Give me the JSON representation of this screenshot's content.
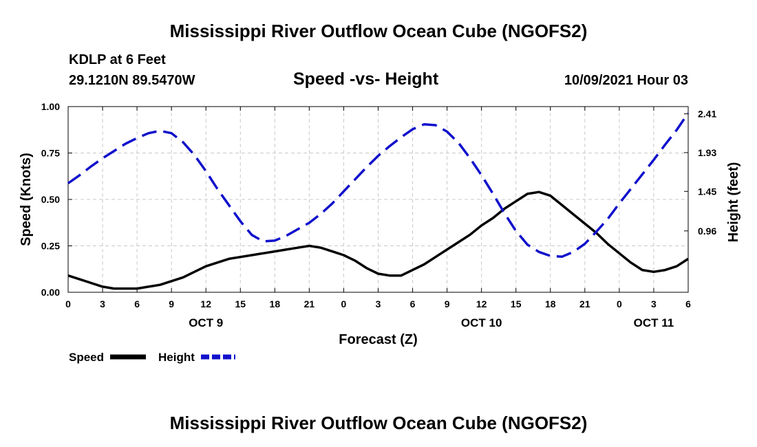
{
  "page": {
    "title_top": "Mississippi River Outflow Ocean Cube (NGOFS2)",
    "title_bottom": "Mississippi River Outflow Ocean Cube (NGOFS2)",
    "station": "KDLP at 6 Feet",
    "coords": "29.1210N  89.5470W",
    "chart_title": "Speed -vs- Height",
    "datetime": "10/09/2021 Hour 03"
  },
  "chart_data": {
    "type": "line",
    "title": "Speed -vs- Height",
    "xlabel": "Forecast (Z)",
    "ylabel": "Speed (Knots)",
    "y2label": "Height (feet)",
    "xlim": [
      0,
      54
    ],
    "ylim": [
      0,
      1.0
    ],
    "y2lim": [
      0.2,
      2.5
    ],
    "grid": true,
    "x_ticks": [
      0,
      3,
      6,
      9,
      12,
      15,
      18,
      21,
      24,
      27,
      30,
      33,
      36,
      39,
      42,
      45,
      48,
      51,
      54
    ],
    "x_tick_labels": [
      "0",
      "3",
      "6",
      "9",
      "12",
      "15",
      "18",
      "21",
      "0",
      "3",
      "6",
      "9",
      "12",
      "15",
      "18",
      "21",
      "0",
      "3",
      "6"
    ],
    "date_labels": [
      {
        "label": "OCT 9",
        "x": 12
      },
      {
        "label": "OCT 10",
        "x": 36
      },
      {
        "label": "OCT 11",
        "x": 51
      }
    ],
    "y_ticks": [
      0.0,
      0.25,
      0.5,
      0.75,
      1.0
    ],
    "y_tick_labels": [
      "0.00",
      "0.25",
      "0.50",
      "0.75",
      "1.00"
    ],
    "y2_ticks": [
      0.96,
      1.45,
      1.93,
      2.41
    ],
    "y2_tick_labels": [
      "0.96",
      "1.45",
      "1.93",
      "2.41"
    ],
    "legend": [
      {
        "name": "Speed",
        "color": "#000000",
        "dash": "solid"
      },
      {
        "name": "Height",
        "color": "#1111cc",
        "dash": "dashed"
      }
    ],
    "series": [
      {
        "name": "Speed",
        "axis": "left",
        "color": "#000000",
        "x": [
          0,
          1,
          2,
          3,
          4,
          5,
          6,
          7,
          8,
          9,
          10,
          11,
          12,
          13,
          14,
          15,
          16,
          17,
          18,
          19,
          20,
          21,
          22,
          23,
          24,
          25,
          26,
          27,
          28,
          29,
          30,
          31,
          32,
          33,
          34,
          35,
          36,
          37,
          38,
          39,
          40,
          41,
          42,
          43,
          44,
          45,
          46,
          47,
          48,
          49,
          50,
          51,
          52,
          53,
          54
        ],
        "values": [
          0.09,
          0.07,
          0.05,
          0.03,
          0.02,
          0.02,
          0.02,
          0.03,
          0.04,
          0.06,
          0.08,
          0.11,
          0.14,
          0.16,
          0.18,
          0.19,
          0.2,
          0.21,
          0.22,
          0.23,
          0.24,
          0.25,
          0.24,
          0.22,
          0.2,
          0.17,
          0.13,
          0.1,
          0.09,
          0.09,
          0.12,
          0.15,
          0.19,
          0.23,
          0.27,
          0.31,
          0.36,
          0.4,
          0.45,
          0.49,
          0.53,
          0.54,
          0.52,
          0.47,
          0.42,
          0.37,
          0.32,
          0.26,
          0.21,
          0.16,
          0.12,
          0.11,
          0.12,
          0.14,
          0.18
        ]
      },
      {
        "name": "Height",
        "axis": "right",
        "color": "#1111cc",
        "x": [
          0,
          1,
          2,
          3,
          4,
          5,
          6,
          7,
          8,
          9,
          10,
          11,
          12,
          13,
          14,
          15,
          16,
          17,
          18,
          19,
          20,
          21,
          22,
          23,
          24,
          25,
          26,
          27,
          28,
          29,
          30,
          31,
          32,
          33,
          34,
          35,
          36,
          37,
          38,
          39,
          40,
          41,
          42,
          43,
          44,
          45,
          46,
          47,
          48,
          49,
          50,
          51,
          52,
          53,
          54
        ],
        "values": [
          1.55,
          1.65,
          1.76,
          1.86,
          1.95,
          2.04,
          2.11,
          2.17,
          2.2,
          2.17,
          2.06,
          1.9,
          1.7,
          1.48,
          1.28,
          1.08,
          0.91,
          0.83,
          0.84,
          0.9,
          0.98,
          1.06,
          1.17,
          1.3,
          1.45,
          1.6,
          1.75,
          1.89,
          2.01,
          2.12,
          2.22,
          2.28,
          2.27,
          2.19,
          2.05,
          1.86,
          1.65,
          1.42,
          1.18,
          0.96,
          0.79,
          0.7,
          0.65,
          0.64,
          0.7,
          0.8,
          0.95,
          1.11,
          1.3,
          1.48,
          1.66,
          1.84,
          2.03,
          2.21,
          2.42
        ]
      }
    ]
  }
}
